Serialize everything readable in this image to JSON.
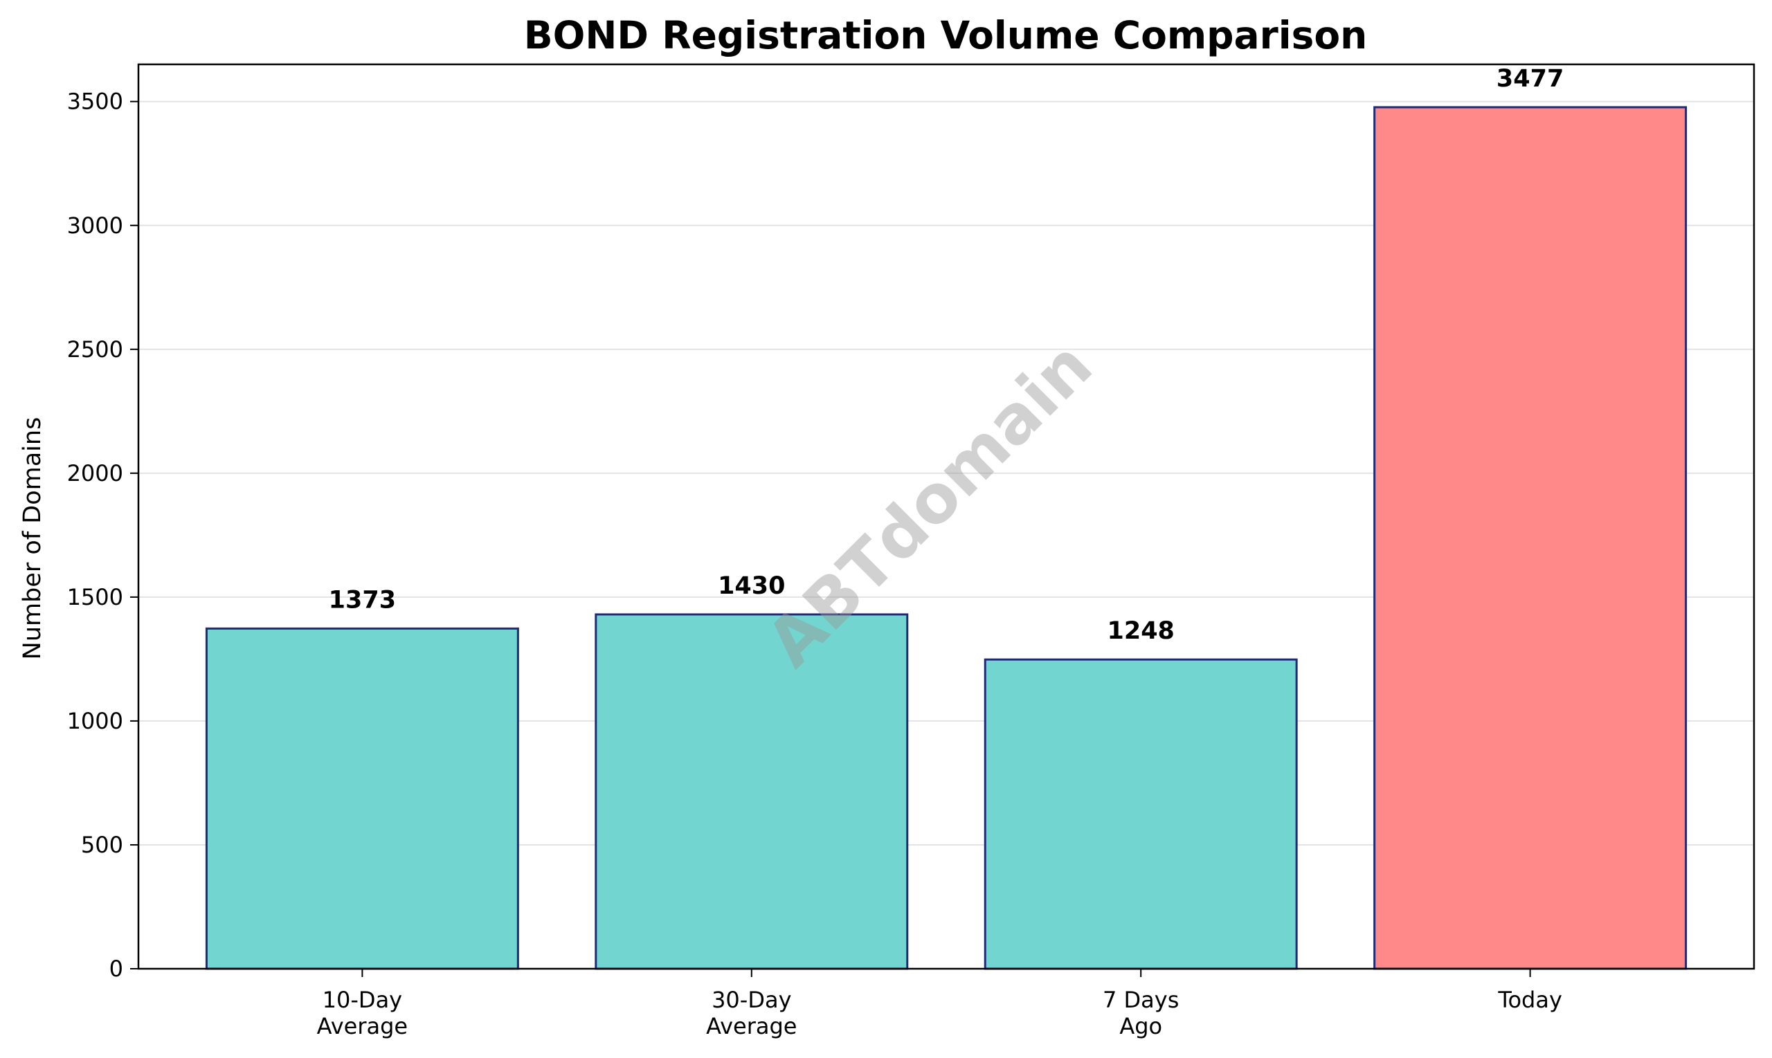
{
  "chart_data": {
    "type": "bar",
    "title": "BOND Registration Volume Comparison",
    "xlabel": "",
    "ylabel": "Number of Domains",
    "categories": [
      "10-Day\nAverage",
      "30-Day\nAverage",
      "7 Days\nAgo",
      "Today"
    ],
    "values": [
      1373,
      1430,
      1248,
      3477
    ],
    "value_labels": [
      "1373",
      "1430",
      "1248",
      "3477"
    ],
    "bar_colors": [
      "#72d5cf",
      "#72d5cf",
      "#72d5cf",
      "#ff8888"
    ],
    "bar_edge_color": "#1f2a7a",
    "ylim": [
      0,
      3650
    ],
    "yticks": [
      0,
      500,
      1000,
      1500,
      2000,
      2500,
      3000,
      3500
    ],
    "grid": "y",
    "legend": "none"
  },
  "watermark": "ABTdomain"
}
